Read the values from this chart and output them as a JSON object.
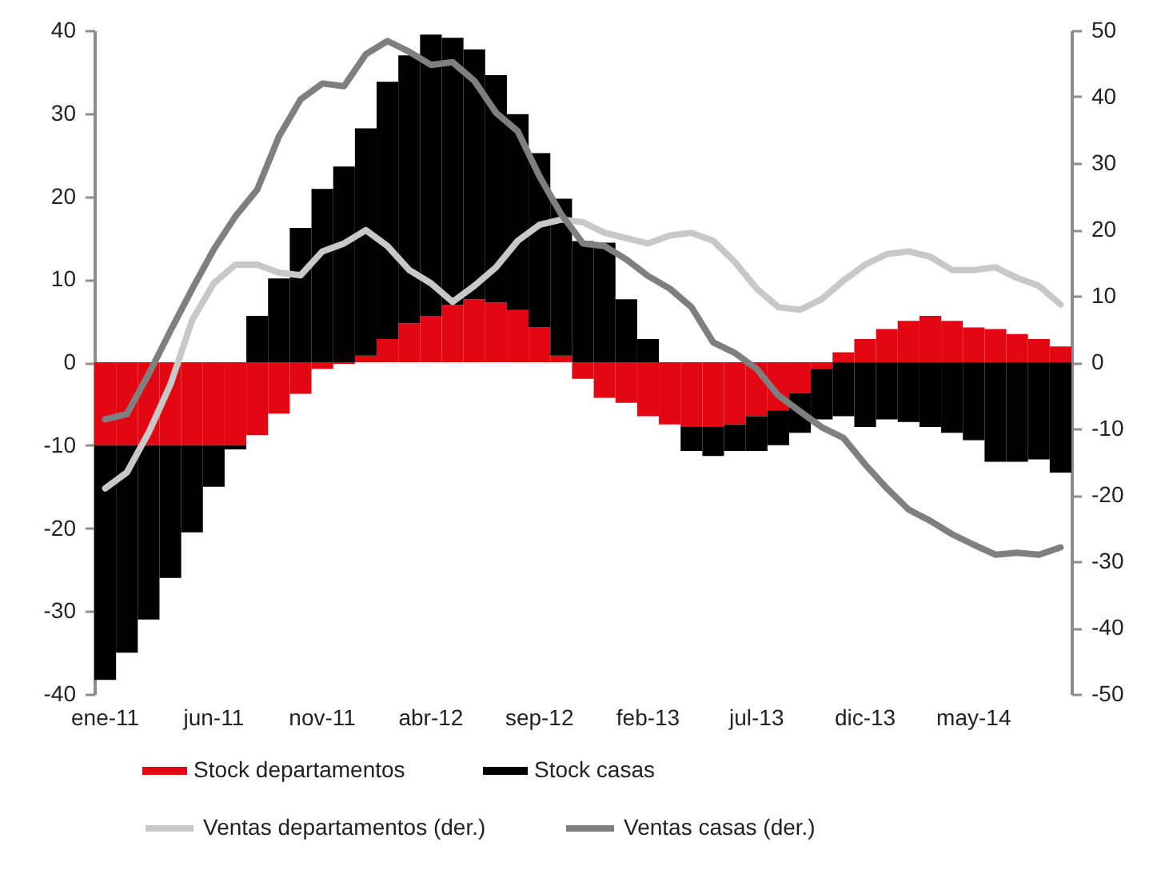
{
  "chart_data": {
    "type": "bar",
    "categories": [
      "ene-11",
      null,
      null,
      null,
      null,
      "jun-11",
      null,
      null,
      null,
      null,
      "nov-11",
      null,
      null,
      null,
      null,
      "abr-12",
      null,
      null,
      null,
      null,
      "sep-12",
      null,
      null,
      null,
      null,
      "feb-13",
      null,
      null,
      null,
      null,
      "jul-13",
      null,
      null,
      null,
      null,
      "dic-13",
      null,
      null,
      null,
      null,
      "may-14",
      null,
      null,
      null,
      null
    ],
    "series": [
      {
        "name": "Stock departamentos",
        "type": "bar",
        "color": "#e30613",
        "values": [
          -10,
          -10,
          -10,
          -10,
          -10,
          -10,
          -10,
          -8.8,
          -6.2,
          -3.8,
          -0.8,
          -0.2,
          0.8,
          2.8,
          4.7,
          5.6,
          6.9,
          7.6,
          7.2,
          6.3,
          4.2,
          0.8,
          -2,
          -4.3,
          -4.9,
          -6.5,
          -7.5,
          -7.8,
          -7.8,
          -7.5,
          -6.5,
          -5.8,
          -3.7,
          -0.8,
          1.2,
          2.8,
          4,
          5,
          5.6,
          5,
          4.2,
          4,
          3.4,
          2.8,
          1.9
        ]
      },
      {
        "name": "Stock casas",
        "type": "bar",
        "color": "#000000",
        "values": [
          -28.3,
          -25,
          -21,
          -16,
          -10.5,
          -5,
          -0.5,
          5.6,
          10.1,
          16.2,
          20.9,
          23.6,
          27.4,
          31,
          32.3,
          33.9,
          32.2,
          30.1,
          27.4,
          23.6,
          21,
          18.9,
          14.6,
          14.4,
          7.6,
          2.8,
          null,
          -2.9,
          -3.5,
          -3.2,
          -4.2,
          -4.2,
          -4.8,
          -6.1,
          -6.5,
          -7.8,
          -6.9,
          -7.2,
          -7.8,
          -8.5,
          -9.4,
          -12,
          -12,
          -11.7,
          -13.3
        ]
      },
      {
        "name": "Ventas departamentos (der.)",
        "type": "line",
        "axis": "y2",
        "color": "#c8c8c8",
        "values": [
          -19,
          -16.6,
          -10.6,
          -3.4,
          6.3,
          11.9,
          14.7,
          14.7,
          13.5,
          13.1,
          16.7,
          17.9,
          19.9,
          17.5,
          13.9,
          11.9,
          9.1,
          11.5,
          14.3,
          18.3,
          20.7,
          21.5,
          21.1,
          19.5,
          18.7,
          17.9,
          19.1,
          19.5,
          18.3,
          15.1,
          11.1,
          8.3,
          7.9,
          9.5,
          12.3,
          14.7,
          16.3,
          16.7,
          15.9,
          13.9,
          13.9,
          14.3,
          12.7,
          11.5,
          8.7
        ]
      },
      {
        "name": "Ventas casas (der.)",
        "type": "line",
        "axis": "y2",
        "color": "#7f7f7f",
        "values": [
          -8.6,
          -7.8,
          -1.8,
          4.7,
          11,
          17,
          22,
          26,
          34,
          39.6,
          42,
          41.6,
          46.4,
          48.4,
          46.8,
          44.8,
          45.2,
          42.4,
          37.6,
          34.8,
          28,
          22.3,
          17.9,
          17.5,
          15.5,
          13,
          11.1,
          8.3,
          3,
          1.4,
          -1,
          -5,
          -7.4,
          -9.8,
          -11.4,
          -15.4,
          -19,
          -22.2,
          -23.9,
          -25.9,
          -27.5,
          -29,
          -28.7,
          -29,
          -27.9
        ]
      }
    ],
    "ylim": [
      -40,
      40
    ],
    "yticks": [
      -40,
      -30,
      -20,
      -10,
      0,
      10,
      20,
      30,
      40
    ],
    "y2lim": [
      -50,
      50
    ],
    "y2ticks": [
      -50,
      -40,
      -30,
      -20,
      -10,
      0,
      10,
      20,
      30,
      40,
      50
    ],
    "stacked": true,
    "grid": false,
    "legend": "bottom",
    "line_style": "solid",
    "marker": "none"
  }
}
